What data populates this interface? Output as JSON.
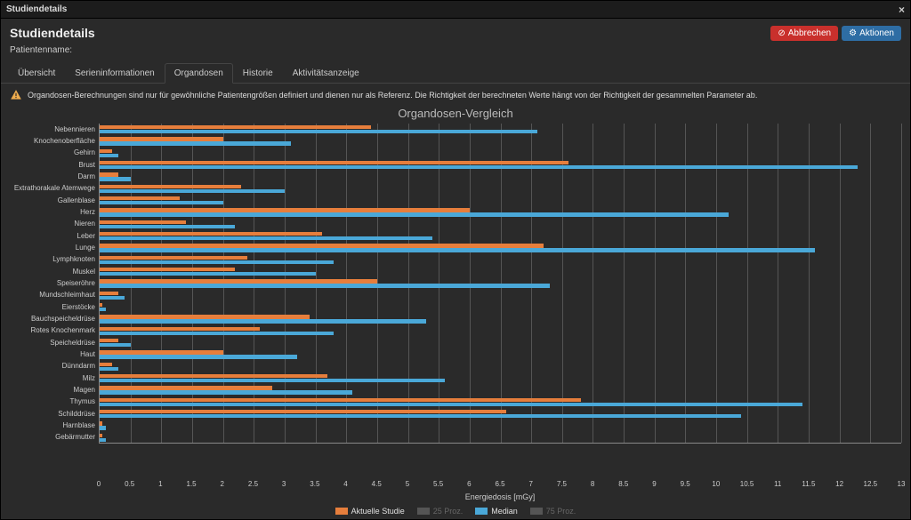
{
  "window": {
    "title": "Studiendetails"
  },
  "header": {
    "title": "Studiendetails",
    "subtitle": "Patientenname:",
    "cancel_label": "Abbrechen",
    "actions_label": "Aktionen"
  },
  "tabs": {
    "items": [
      {
        "label": "Übersicht",
        "active": false
      },
      {
        "label": "Serieninformationen",
        "active": false
      },
      {
        "label": "Organdosen",
        "active": true
      },
      {
        "label": "Historie",
        "active": false
      },
      {
        "label": "Aktivitätsanzeige",
        "active": false
      }
    ]
  },
  "warning": {
    "text": "Organdosen-Berechnungen sind nur für gewöhnliche Patientengrößen definiert und dienen nur als Referenz. Die Richtigkeit der berechneten Werte hängt von der Richtigkeit der gesammelten Parameter ab."
  },
  "chart": {
    "title": "Organdosen-Vergleich",
    "type": "horizontal-bar",
    "x_label": "Energiedosis [mGy]",
    "x_min": 0,
    "x_max": 13,
    "x_tick_step": 0.5,
    "grid_color": "#555555",
    "axis_color": "#888888",
    "background": "#2a2a2a",
    "label_fontsize": 8,
    "series_colors": {
      "aktuelle_studie": "#e67e3c",
      "median": "#4aa8d8",
      "disabled": "#555555"
    },
    "legend": [
      {
        "label": "Aktuelle Studie",
        "color": "#e67e3c",
        "enabled": true
      },
      {
        "label": "25 Proz.",
        "color": "#555555",
        "enabled": false
      },
      {
        "label": "Median",
        "color": "#4aa8d8",
        "enabled": true
      },
      {
        "label": "75 Proz.",
        "color": "#555555",
        "enabled": false
      }
    ],
    "organs": [
      {
        "name": "Nebennieren",
        "aktuelle": 4.4,
        "median": 7.1
      },
      {
        "name": "Knochenoberfläche",
        "aktuelle": 2.0,
        "median": 3.1
      },
      {
        "name": "Gehirn",
        "aktuelle": 0.2,
        "median": 0.3
      },
      {
        "name": "Brust",
        "aktuelle": 7.6,
        "median": 12.3
      },
      {
        "name": "Darm",
        "aktuelle": 0.3,
        "median": 0.5
      },
      {
        "name": "Extrathorakale Atemwege",
        "aktuelle": 2.3,
        "median": 3.0
      },
      {
        "name": "Gallenblase",
        "aktuelle": 1.3,
        "median": 2.0
      },
      {
        "name": "Herz",
        "aktuelle": 6.0,
        "median": 10.2
      },
      {
        "name": "Nieren",
        "aktuelle": 1.4,
        "median": 2.2
      },
      {
        "name": "Leber",
        "aktuelle": 3.6,
        "median": 5.4
      },
      {
        "name": "Lunge",
        "aktuelle": 7.2,
        "median": 11.6
      },
      {
        "name": "Lymphknoten",
        "aktuelle": 2.4,
        "median": 3.8
      },
      {
        "name": "Muskel",
        "aktuelle": 2.2,
        "median": 3.5
      },
      {
        "name": "Speiseröhre",
        "aktuelle": 4.5,
        "median": 7.3
      },
      {
        "name": "Mundschleimhaut",
        "aktuelle": 0.3,
        "median": 0.4
      },
      {
        "name": "Eierstöcke",
        "aktuelle": 0.05,
        "median": 0.1
      },
      {
        "name": "Bauchspeicheldrüse",
        "aktuelle": 3.4,
        "median": 5.3
      },
      {
        "name": "Rotes Knochenmark",
        "aktuelle": 2.6,
        "median": 3.8
      },
      {
        "name": "Speicheldrüse",
        "aktuelle": 0.3,
        "median": 0.5
      },
      {
        "name": "Haut",
        "aktuelle": 2.0,
        "median": 3.2
      },
      {
        "name": "Dünndarm",
        "aktuelle": 0.2,
        "median": 0.3
      },
      {
        "name": "Milz",
        "aktuelle": 3.7,
        "median": 5.6
      },
      {
        "name": "Magen",
        "aktuelle": 2.8,
        "median": 4.1
      },
      {
        "name": "Thymus",
        "aktuelle": 7.8,
        "median": 11.4
      },
      {
        "name": "Schilddrüse",
        "aktuelle": 6.6,
        "median": 10.4
      },
      {
        "name": "Harnblase",
        "aktuelle": 0.05,
        "median": 0.1
      },
      {
        "name": "Gebärmutter",
        "aktuelle": 0.05,
        "median": 0.1
      }
    ]
  }
}
